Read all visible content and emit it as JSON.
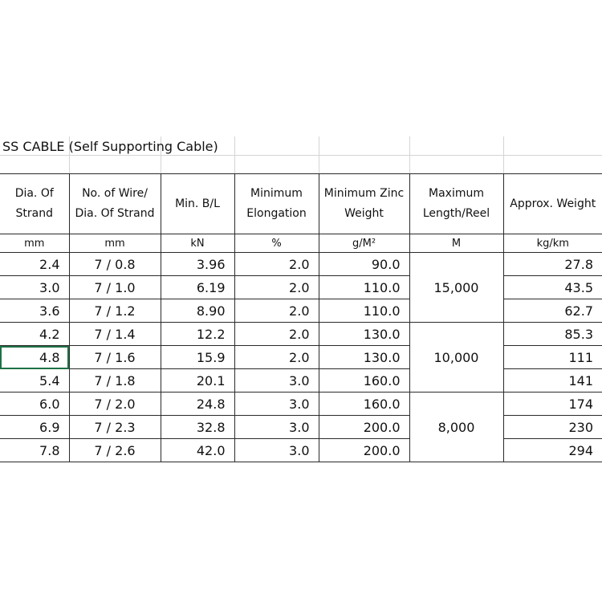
{
  "title": "SS CABLE (Self Supporting Cable)",
  "headers": [
    "Dia. Of Strand",
    "No. of Wire/ Dia. Of Strand",
    "Min. B/L",
    "Minimum Elongation",
    "Minimum Zinc Weight",
    "Maximum Length/Reel",
    "Approx. Weight"
  ],
  "units": [
    "mm",
    "mm",
    "kN",
    "%",
    "g/M²",
    "M",
    "kg/km"
  ],
  "rows": [
    {
      "dia": "2.4",
      "wire": "7 / 0.8",
      "bl": "3.96",
      "elong": "2.0",
      "zinc": "90.0",
      "weight": "27.8"
    },
    {
      "dia": "3.0",
      "wire": "7 / 1.0",
      "bl": "6.19",
      "elong": "2.0",
      "zinc": "110.0",
      "weight": "43.5"
    },
    {
      "dia": "3.6",
      "wire": "7 / 1.2",
      "bl": "8.90",
      "elong": "2.0",
      "zinc": "110.0",
      "weight": "62.7"
    },
    {
      "dia": "4.2",
      "wire": "7 / 1.4",
      "bl": "12.2",
      "elong": "2.0",
      "zinc": "130.0",
      "weight": "85.3"
    },
    {
      "dia": "4.8",
      "wire": "7 / 1.6",
      "bl": "15.9",
      "elong": "2.0",
      "zinc": "130.0",
      "weight": "111"
    },
    {
      "dia": "5.4",
      "wire": "7 / 1.8",
      "bl": "20.1",
      "elong": "3.0",
      "zinc": "160.0",
      "weight": "141"
    },
    {
      "dia": "6.0",
      "wire": "7 / 2.0",
      "bl": "24.8",
      "elong": "3.0",
      "zinc": "160.0",
      "weight": "174"
    },
    {
      "dia": "6.9",
      "wire": "7 / 2.3",
      "bl": "32.8",
      "elong": "3.0",
      "zinc": "200.0",
      "weight": "230"
    },
    {
      "dia": "7.8",
      "wire": "7 / 2.6",
      "bl": "42.0",
      "elong": "3.0",
      "zinc": "200.0",
      "weight": "294"
    }
  ],
  "reel_lengths": [
    "15,000",
    "10,000",
    "8,000"
  ],
  "colors": {
    "selection": "#1e7145",
    "gridline": "#d4d4d4",
    "border": "#2a2a2a"
  }
}
